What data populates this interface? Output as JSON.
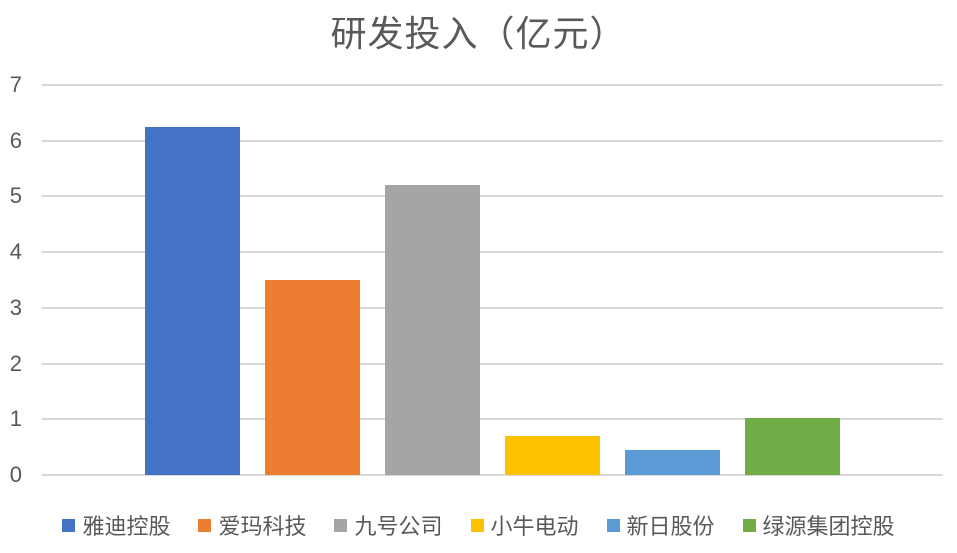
{
  "style": {
    "text_color": "#595959",
    "gridline_color": "#D9D9D9",
    "background": "#FFFFFF"
  },
  "chart_data": {
    "type": "bar",
    "title": "研发投入（亿元）",
    "categories": [
      "雅迪控股",
      "爱玛科技",
      "九号公司",
      "小牛电动",
      "新日股份",
      "绿源集团控股"
    ],
    "series": [
      {
        "name": "雅迪控股",
        "value": 6.24,
        "color": "#4472C4"
      },
      {
        "name": "爱玛科技",
        "value": 3.5,
        "color": "#ED7D31"
      },
      {
        "name": "九号公司",
        "value": 5.21,
        "color": "#A5A5A5"
      },
      {
        "name": "小牛电动",
        "value": 0.7,
        "color": "#FFC000"
      },
      {
        "name": "新日股份",
        "value": 0.45,
        "color": "#5B9BD5"
      },
      {
        "name": "绿源集团控股",
        "value": 1.02,
        "color": "#70AD47"
      }
    ],
    "xlabel": "",
    "ylabel": "",
    "ylim": [
      0,
      7
    ],
    "yticks": [
      0,
      1,
      2,
      3,
      4,
      5,
      6,
      7
    ],
    "grid": true,
    "legend_position": "bottom"
  }
}
